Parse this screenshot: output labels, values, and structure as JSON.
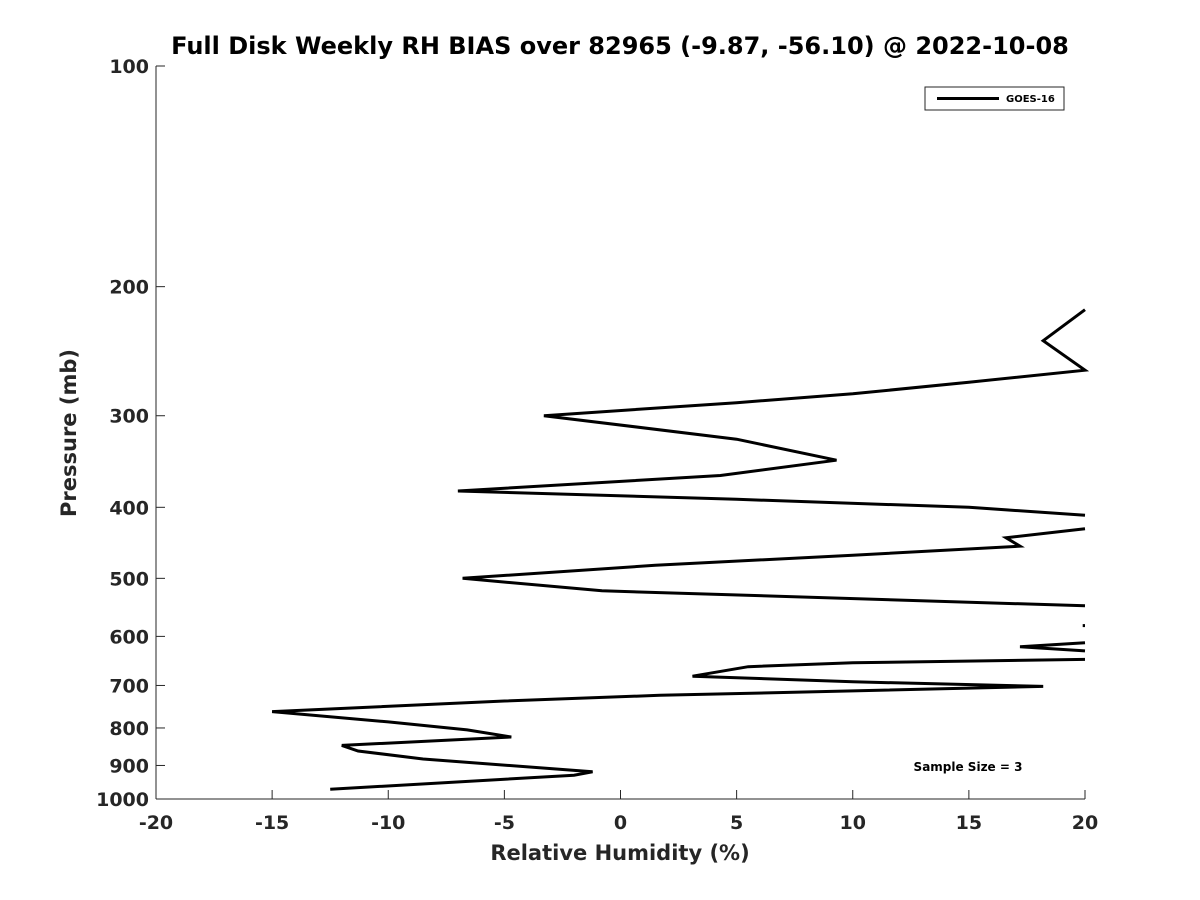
{
  "chart_data": {
    "type": "line",
    "title": "Full Disk Weekly RH BIAS over 82965 (-9.87, -56.10) @ 2022-10-08",
    "xlabel": "Relative Humidity (%)",
    "ylabel": "Pressure (mb)",
    "xlim": [
      -20,
      20
    ],
    "ylim": [
      100,
      1000
    ],
    "yscale": "log",
    "y_inverted": true,
    "x_ticks": [
      -20,
      -15,
      -10,
      -5,
      0,
      5,
      10,
      15,
      20
    ],
    "x_tick_labels": [
      "-20",
      "-15",
      "-10",
      "-5",
      "0",
      "5",
      "10",
      "15",
      "20"
    ],
    "y_ticks": [
      100,
      200,
      300,
      400,
      500,
      600,
      700,
      800,
      900,
      1000
    ],
    "y_tick_labels": [
      "100",
      "200",
      "300",
      "400",
      "500",
      "600",
      "700",
      "800",
      "900",
      "1000"
    ],
    "grid": false,
    "legend_position": "top-right",
    "series": [
      {
        "name": "GOES-16",
        "color": "#000000",
        "segments": [
          [
            {
              "x": 20,
              "y": 215
            },
            {
              "x": 18.2,
              "y": 237
            },
            {
              "x": 20,
              "y": 260
            },
            {
              "x": 15,
              "y": 270
            },
            {
              "x": 10,
              "y": 280
            },
            {
              "x": 5,
              "y": 288
            },
            {
              "x": -3.3,
              "y": 300
            },
            {
              "x": 5,
              "y": 323
            },
            {
              "x": 9.3,
              "y": 345
            },
            {
              "x": 4.3,
              "y": 362
            },
            {
              "x": -7,
              "y": 380
            },
            {
              "x": 5,
              "y": 390
            },
            {
              "x": 15,
              "y": 400
            },
            {
              "x": 20,
              "y": 410
            }
          ],
          [
            {
              "x": 20,
              "y": 428
            },
            {
              "x": 16.6,
              "y": 440
            },
            {
              "x": 17.2,
              "y": 452
            },
            {
              "x": 10,
              "y": 465
            },
            {
              "x": 1.5,
              "y": 480
            },
            {
              "x": -6.8,
              "y": 500
            },
            {
              "x": -0.8,
              "y": 520
            },
            {
              "x": 20,
              "y": 545
            }
          ],
          [
            {
              "x": 19.9,
              "y": 580
            },
            {
              "x": 20,
              "y": 580
            }
          ],
          [
            {
              "x": 20,
              "y": 612
            },
            {
              "x": 17.2,
              "y": 620
            },
            {
              "x": 20,
              "y": 628
            }
          ],
          [
            {
              "x": 20,
              "y": 645
            },
            {
              "x": 10,
              "y": 652
            },
            {
              "x": 5.5,
              "y": 660
            },
            {
              "x": 3.1,
              "y": 680
            },
            {
              "x": 10,
              "y": 692
            },
            {
              "x": 18.2,
              "y": 702
            },
            {
              "x": 10,
              "y": 712
            },
            {
              "x": 1.7,
              "y": 722
            },
            {
              "x": -5,
              "y": 735
            },
            {
              "x": -15,
              "y": 760
            },
            {
              "x": -10,
              "y": 785
            },
            {
              "x": -6.6,
              "y": 805
            },
            {
              "x": -4.7,
              "y": 823
            },
            {
              "x": -12,
              "y": 845
            },
            {
              "x": -11.3,
              "y": 860
            },
            {
              "x": -8.5,
              "y": 882
            },
            {
              "x": -1.2,
              "y": 918
            },
            {
              "x": -2,
              "y": 928
            },
            {
              "x": -12.5,
              "y": 970
            }
          ]
        ]
      }
    ],
    "annotations": [
      {
        "text": "Sample Size = 3",
        "position": "bottom-right"
      }
    ]
  }
}
